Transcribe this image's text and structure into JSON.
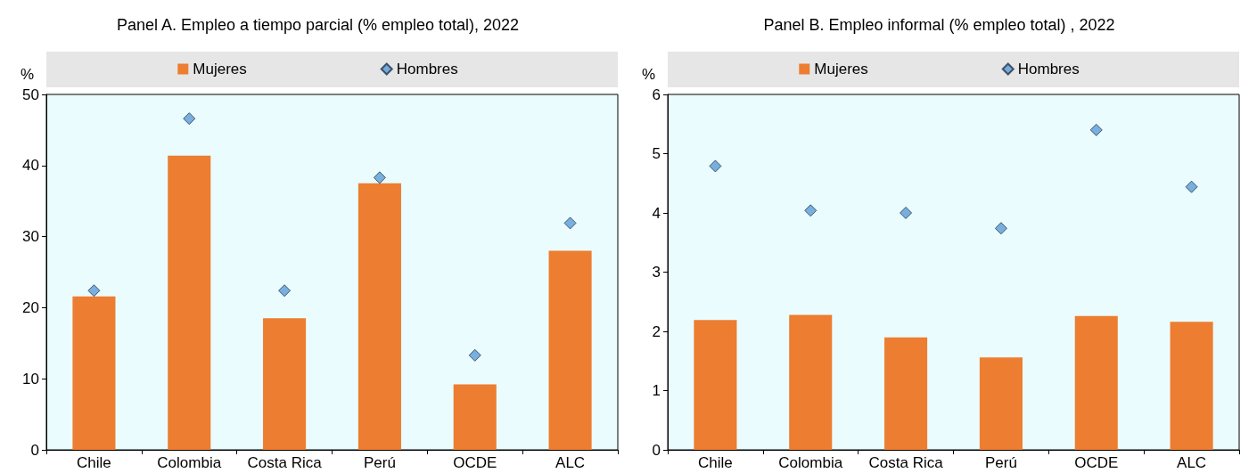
{
  "chart_data": [
    {
      "type": "bar",
      "title": "Panel A. Empleo a tiempo parcial (% empleo total), 2022",
      "ylabel": "%",
      "categories": [
        "Chile",
        "Colombia",
        "Costa Rica",
        "Perú",
        "OCDE",
        "ALC"
      ],
      "series": [
        {
          "name": "Mujeres",
          "color": "#ed7d31",
          "values": [
            21.6,
            41.4,
            18.5,
            37.5,
            9.2,
            28.0
          ]
        },
        {
          "name": "Hombres",
          "type": "scatter",
          "color": "#5b9bd5",
          "values": [
            22.4,
            46.6,
            22.4,
            38.3,
            13.3,
            31.9
          ]
        }
      ],
      "ylim": [
        0,
        50
      ],
      "yticks": [
        0,
        10,
        20,
        30,
        40,
        50
      ],
      "grid": false,
      "legend": "top",
      "marker": "diamond"
    },
    {
      "type": "bar",
      "title": "Panel B. Empleo informal (% empleo total) , 2022",
      "ylabel": "%",
      "categories": [
        "Chile",
        "Colombia",
        "Costa Rica",
        "Perú",
        "OCDE",
        "ALC"
      ],
      "series": [
        {
          "name": "Mujeres",
          "color": "#ed7d31",
          "values": [
            2.19,
            2.28,
            1.9,
            1.56,
            2.26,
            2.16
          ]
        },
        {
          "name": "Hombres",
          "type": "scatter",
          "color": "#5b9bd5",
          "values": [
            4.79,
            4.04,
            4.0,
            3.74,
            5.4,
            4.44
          ]
        }
      ],
      "ylim": [
        0,
        6
      ],
      "yticks": [
        0,
        1,
        2,
        3,
        4,
        5,
        6
      ],
      "grid": false,
      "legend": "top",
      "marker": "diamond"
    }
  ]
}
